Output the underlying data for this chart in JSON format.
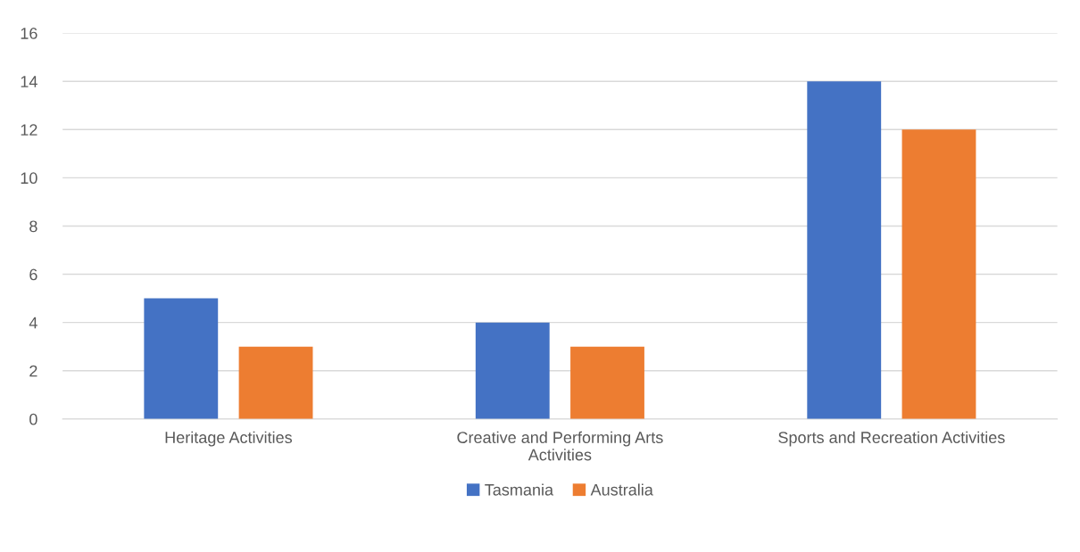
{
  "chart_data": {
    "type": "bar",
    "categories": [
      "Heritage Activities",
      "Creative and Performing Arts\nActivities",
      "Sports and Recreation Activities"
    ],
    "series": [
      {
        "name": "Tasmania",
        "color": "#4472c4",
        "values": [
          5,
          4,
          14
        ]
      },
      {
        "name": "Australia",
        "color": "#ed7d31",
        "values": [
          3,
          3,
          12
        ]
      }
    ],
    "ylim": [
      0,
      16
    ],
    "yticks": [
      0,
      2,
      4,
      6,
      8,
      10,
      12,
      14,
      16
    ],
    "grid": "y",
    "legend": "bottom"
  }
}
